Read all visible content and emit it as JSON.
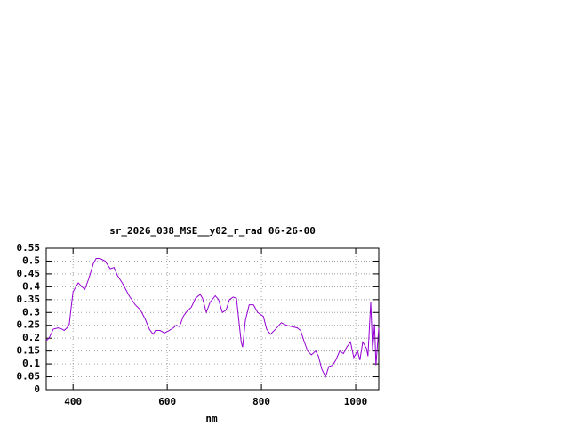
{
  "chart_data": {
    "type": "line",
    "title": "sr_2026_038_MSE__y02_r_rad 06-26-00",
    "x_label": "nm",
    "xlim": [
      343,
      1049
    ],
    "xticks": [
      400,
      600,
      800,
      1000
    ],
    "ylim": [
      0,
      0.55
    ],
    "yticks": [
      0,
      0.05,
      0.1,
      0.15,
      0.2,
      0.25,
      0.3,
      0.35,
      0.4,
      0.45,
      0.5,
      0.55
    ],
    "grid": true,
    "x": [
      343,
      349,
      358,
      368,
      377,
      381,
      387,
      392,
      396,
      400,
      406,
      411,
      419,
      425,
      434,
      443,
      449,
      457,
      468,
      479,
      487,
      494,
      506,
      519,
      532,
      543,
      553,
      562,
      570,
      575,
      585,
      594,
      604,
      613,
      619,
      626,
      634,
      642,
      651,
      660,
      670,
      675,
      683,
      691,
      702,
      709,
      717,
      725,
      732,
      740,
      747,
      751,
      757,
      760,
      766,
      774,
      783,
      792,
      804,
      811,
      819,
      830,
      842,
      853,
      864,
      876,
      883,
      891,
      898,
      906,
      915,
      921,
      928,
      936,
      943,
      951,
      958,
      966,
      974,
      981,
      989,
      996,
      1004,
      1009,
      1015,
      1023,
      1026,
      1032,
      1036,
      1040,
      1043,
      1049
    ],
    "series": [
      {
        "color": "#9400d3",
        "values": [
          0.19,
          0.2,
          0.235,
          0.24,
          0.235,
          0.23,
          0.24,
          0.255,
          0.32,
          0.38,
          0.4,
          0.415,
          0.4,
          0.39,
          0.435,
          0.49,
          0.51,
          0.51,
          0.5,
          0.47,
          0.475,
          0.445,
          0.41,
          0.365,
          0.33,
          0.31,
          0.275,
          0.235,
          0.215,
          0.23,
          0.23,
          0.22,
          0.23,
          0.24,
          0.25,
          0.245,
          0.285,
          0.305,
          0.32,
          0.355,
          0.37,
          0.355,
          0.3,
          0.34,
          0.365,
          0.35,
          0.3,
          0.31,
          0.35,
          0.36,
          0.355,
          0.285,
          0.185,
          0.165,
          0.27,
          0.33,
          0.33,
          0.3,
          0.285,
          0.235,
          0.215,
          0.235,
          0.26,
          0.25,
          0.245,
          0.24,
          0.23,
          0.185,
          0.15,
          0.135,
          0.15,
          0.13,
          0.08,
          0.05,
          0.09,
          0.095,
          0.115,
          0.15,
          0.14,
          0.165,
          0.185,
          0.125,
          0.15,
          0.115,
          0.185,
          0.16,
          0.13,
          0.34,
          0.15,
          0.255,
          0.095,
          0.24
        ]
      }
    ]
  }
}
